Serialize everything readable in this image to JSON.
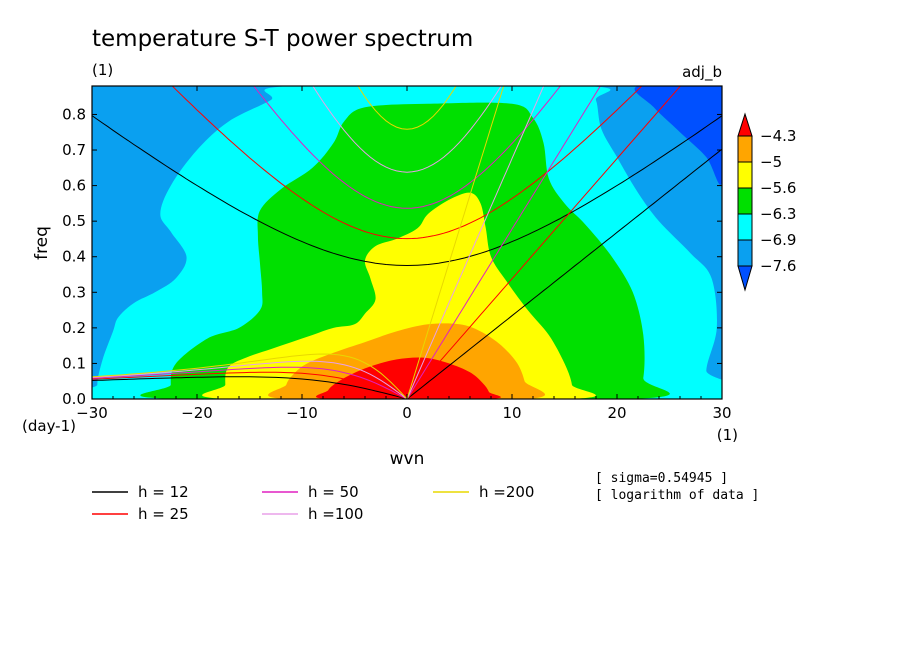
{
  "figure": {
    "title": "temperature S-T power spectrum",
    "subtitle_left": "(1)",
    "subtitle_right": "adj_b",
    "y_unit": "(day-1)",
    "x_unit": "(1)",
    "note_sigma": "[ sigma=0.54945 ]",
    "note_log": "[ logarithm of data ]"
  },
  "chart_data": {
    "type": "contour",
    "xlabel": "wvn",
    "ylabel": "freq",
    "xlim": [
      -30,
      30
    ],
    "ylim": [
      0,
      0.88
    ],
    "x_ticks": [
      -30,
      -20,
      -10,
      0,
      10,
      20,
      30
    ],
    "y_ticks": [
      0.0,
      0.1,
      0.2,
      0.3,
      0.4,
      0.5,
      0.6,
      0.7,
      0.8
    ],
    "x_tick_labels": [
      "−30",
      "−20",
      "−10",
      "0",
      "10",
      "20",
      "30"
    ],
    "y_tick_labels": [
      "0.0",
      "0.1",
      "0.2",
      "0.3",
      "0.4",
      "0.5",
      "0.6",
      "0.7",
      "0.8"
    ],
    "colorbar": {
      "levels": [
        -4.3,
        -5,
        -5.6,
        -6.3,
        -6.9,
        -7.6
      ],
      "labels": [
        "−4.3",
        "−5",
        "−5.6",
        "−6.3",
        "−6.9",
        "−7.6"
      ],
      "colors": [
        "#ff0000",
        "#ffa500",
        "#ffff00",
        "#00e000",
        "#00ffff",
        "#0aa0f0",
        "#0050ff"
      ]
    },
    "fill_regions": [
      {
        "band": "-7.6 to -6.9",
        "color": "#0aa0f0",
        "points": [
          [
            -30,
            0
          ],
          [
            30,
            0
          ],
          [
            30,
            0.88
          ],
          [
            -30,
            0.88
          ]
        ]
      },
      {
        "band": "-6.9 to -6.3",
        "color": "#00ffff",
        "points": [
          [
            -29,
            0
          ],
          [
            -29.5,
            0.04
          ],
          [
            -29,
            0.11
          ],
          [
            -28,
            0.19
          ],
          [
            -27.5,
            0.23
          ],
          [
            -26,
            0.27
          ],
          [
            -24,
            0.3
          ],
          [
            -22,
            0.34
          ],
          [
            -21,
            0.4
          ],
          [
            -22.5,
            0.47
          ],
          [
            -23.5,
            0.52
          ],
          [
            -22.5,
            0.6
          ],
          [
            -20,
            0.7
          ],
          [
            -17,
            0.78
          ],
          [
            -13,
            0.84
          ],
          [
            -11,
            0.88
          ],
          [
            17,
            0.88
          ],
          [
            18,
            0.84
          ],
          [
            18.5,
            0.76
          ],
          [
            20,
            0.68
          ],
          [
            22,
            0.58
          ],
          [
            24,
            0.5
          ],
          [
            27,
            0.41
          ],
          [
            29,
            0.34
          ],
          [
            29.5,
            0.2
          ],
          [
            28.5,
            0.08
          ],
          [
            29,
            0
          ]
        ]
      },
      {
        "band": "-6.3 to -5.6",
        "color": "#00e000",
        "points": [
          [
            -22,
            0
          ],
          [
            -22.5,
            0.04
          ],
          [
            -22,
            0.1
          ],
          [
            -19,
            0.17
          ],
          [
            -16,
            0.2
          ],
          [
            -14,
            0.25
          ],
          [
            -13.8,
            0.3
          ],
          [
            -14,
            0.38
          ],
          [
            -14.2,
            0.46
          ],
          [
            -14,
            0.53
          ],
          [
            -12,
            0.59
          ],
          [
            -9,
            0.65
          ],
          [
            -7,
            0.72
          ],
          [
            -6,
            0.78
          ],
          [
            -4,
            0.82
          ],
          [
            2,
            0.83
          ],
          [
            10,
            0.83
          ],
          [
            12,
            0.79
          ],
          [
            13,
            0.72
          ],
          [
            13.5,
            0.62
          ],
          [
            15,
            0.55
          ],
          [
            17,
            0.49
          ],
          [
            19.5,
            0.4
          ],
          [
            21.5,
            0.3
          ],
          [
            22.5,
            0.18
          ],
          [
            22.5,
            0.06
          ],
          [
            21.5,
            0
          ]
        ]
      },
      {
        "band": "-5.6 to -5",
        "color": "#ffff00",
        "points": [
          [
            -17,
            0
          ],
          [
            -17.3,
            0.04
          ],
          [
            -17,
            0.09
          ],
          [
            -15,
            0.12
          ],
          [
            -13,
            0.14
          ],
          [
            -11,
            0.16
          ],
          [
            -9,
            0.18
          ],
          [
            -7,
            0.2
          ],
          [
            -5,
            0.21
          ],
          [
            -4,
            0.24
          ],
          [
            -3,
            0.28
          ],
          [
            -3.5,
            0.34
          ],
          [
            -4,
            0.39
          ],
          [
            -3,
            0.43
          ],
          [
            -1,
            0.45
          ],
          [
            1,
            0.48
          ],
          [
            2,
            0.52
          ],
          [
            4,
            0.56
          ],
          [
            6,
            0.58
          ],
          [
            7,
            0.55
          ],
          [
            7.5,
            0.48
          ],
          [
            8,
            0.4
          ],
          [
            9.5,
            0.33
          ],
          [
            11.5,
            0.25
          ],
          [
            13.5,
            0.18
          ],
          [
            15,
            0.1
          ],
          [
            15.7,
            0.04
          ],
          [
            15.5,
            0
          ]
        ]
      },
      {
        "band": "-5 to -4.3",
        "color": "#ffa500",
        "points": [
          [
            -11.5,
            0
          ],
          [
            -11.5,
            0.04
          ],
          [
            -10.8,
            0.07
          ],
          [
            -9.5,
            0.1
          ],
          [
            -7,
            0.13
          ],
          [
            -4,
            0.16
          ],
          [
            -1,
            0.19
          ],
          [
            2,
            0.21
          ],
          [
            5,
            0.21
          ],
          [
            7,
            0.19
          ],
          [
            9,
            0.15
          ],
          [
            10.5,
            0.1
          ],
          [
            11.2,
            0.05
          ],
          [
            11.5,
            0
          ]
        ]
      },
      {
        "band": "> -4.3",
        "color": "#ff0000",
        "points": [
          [
            -7.5,
            0
          ],
          [
            -7.5,
            0.025
          ],
          [
            -6.5,
            0.05
          ],
          [
            -4.5,
            0.08
          ],
          [
            -2,
            0.105
          ],
          [
            0,
            0.115
          ],
          [
            2,
            0.115
          ],
          [
            4,
            0.1
          ],
          [
            6,
            0.075
          ],
          [
            7.2,
            0.045
          ],
          [
            7.8,
            0.02
          ],
          [
            7.8,
            0
          ]
        ]
      }
    ],
    "dispersion_curves": [
      {
        "name": "h = 12",
        "h": 12,
        "color": "#000000"
      },
      {
        "name": "h = 25",
        "h": 25,
        "color": "#ff0000"
      },
      {
        "name": "h = 50",
        "h": 50,
        "color": "#e020c0"
      },
      {
        "name": "h =100",
        "h": 100,
        "color": "#e8a0e8"
      },
      {
        "name": "h =200",
        "h": 200,
        "color": "#e8d800"
      }
    ]
  }
}
